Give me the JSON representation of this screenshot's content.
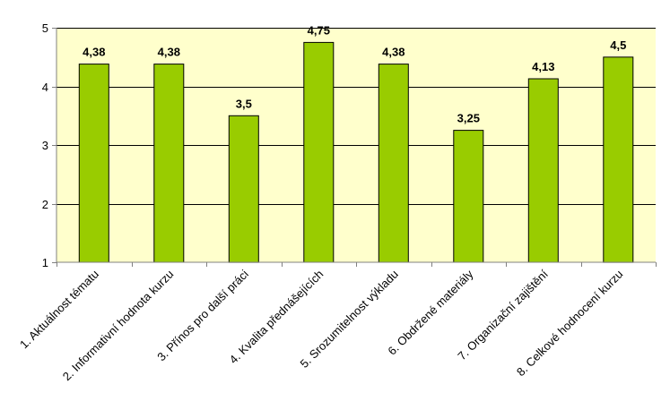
{
  "chart_data": {
    "type": "bar",
    "categories": [
      "1. Aktuálnost tématu",
      "2. Informativní hodnota kurzu",
      "3. Přínos pro další práci",
      "4. Kvalita přednášejících",
      "5. Srozumitelnost výkladu",
      "6. Obdržené materiály",
      "7. Organizační zajištění",
      "8. Celkové hodnocení kurzu"
    ],
    "values": [
      4.38,
      4.38,
      3.5,
      4.75,
      4.38,
      3.25,
      4.13,
      4.5
    ],
    "data_labels": [
      "4,38",
      "4,38",
      "3,5",
      "4,75",
      "4,38",
      "3,25",
      "4,13",
      "4,5"
    ],
    "y_ticks": [
      1,
      2,
      3,
      4,
      5
    ],
    "y_tick_labels": [
      "1",
      "2",
      "3",
      "4",
      "5"
    ],
    "ylim": [
      1,
      5
    ],
    "grid": true,
    "legend": "none",
    "title": "",
    "xlabel": "",
    "ylabel": "",
    "colors": {
      "bar_fill": "#99CC00",
      "bar_stroke": "#000000",
      "plot_background": "#FFFFCC",
      "gridline": "#000000",
      "axis": "#808080"
    }
  }
}
